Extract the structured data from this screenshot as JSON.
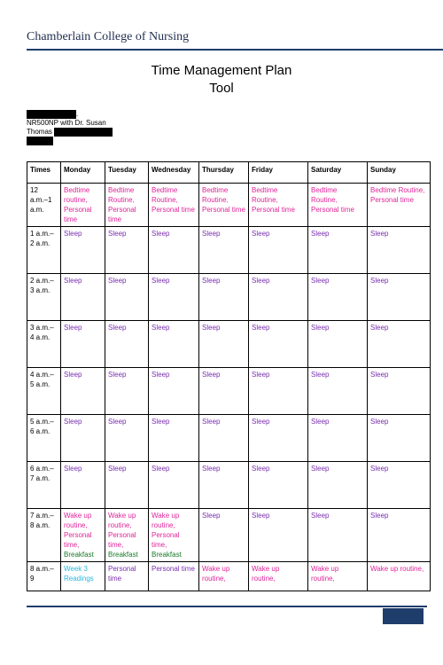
{
  "header": {
    "brand": "Chamberlain College of Nursing"
  },
  "title": {
    "line1": "Time Management Plan",
    "line2": "Tool"
  },
  "meta": {
    "course": "NR500NP with Dr. Susan",
    "instructor_last": "Thomas"
  },
  "table": {
    "headers": [
      "Times",
      "Monday",
      "Tuesday",
      "Wednesday",
      "Thursday",
      "Friday",
      "Saturday",
      "Sunday"
    ],
    "rows": [
      {
        "time": "12 a.m.–1 a.m.",
        "cells": [
          [
            {
              "t": "Bedtime routine, Personal time",
              "c": "magenta"
            }
          ],
          [
            {
              "t": "Bedtime Routine, Personal time",
              "c": "magenta"
            }
          ],
          [
            {
              "t": "Bedtime Routine, Personal time",
              "c": "magenta"
            }
          ],
          [
            {
              "t": "Bedtime Routine, Personal time",
              "c": "magenta"
            }
          ],
          [
            {
              "t": "Bedtime Routine, Personal time",
              "c": "magenta"
            }
          ],
          [
            {
              "t": "Bedtime Routine, Personal time",
              "c": "magenta"
            }
          ],
          [
            {
              "t": "Bedtime Routine, Personal time",
              "c": "magenta"
            }
          ]
        ]
      },
      {
        "time": "1 a.m.–2 a.m.",
        "cells": [
          [
            {
              "t": "Sleep",
              "c": "purple"
            }
          ],
          [
            {
              "t": "Sleep",
              "c": "purple"
            }
          ],
          [
            {
              "t": "Sleep",
              "c": "purple"
            }
          ],
          [
            {
              "t": "Sleep",
              "c": "purple"
            }
          ],
          [
            {
              "t": "Sleep",
              "c": "purple"
            }
          ],
          [
            {
              "t": "Sleep",
              "c": "purple"
            }
          ],
          [
            {
              "t": "Sleep",
              "c": "purple"
            }
          ]
        ]
      },
      {
        "time": "2 a.m.–3 a.m.",
        "cells": [
          [
            {
              "t": "Sleep",
              "c": "purple"
            }
          ],
          [
            {
              "t": "Sleep",
              "c": "purple"
            }
          ],
          [
            {
              "t": "Sleep",
              "c": "purple"
            }
          ],
          [
            {
              "t": "Sleep",
              "c": "purple"
            }
          ],
          [
            {
              "t": "Sleep",
              "c": "purple"
            }
          ],
          [
            {
              "t": "Sleep",
              "c": "purple"
            }
          ],
          [
            {
              "t": "Sleep",
              "c": "purple"
            }
          ]
        ]
      },
      {
        "time": "3 a.m.–4 a.m.",
        "cells": [
          [
            {
              "t": "Sleep",
              "c": "purple"
            }
          ],
          [
            {
              "t": "Sleep",
              "c": "purple"
            }
          ],
          [
            {
              "t": "Sleep",
              "c": "purple"
            }
          ],
          [
            {
              "t": "Sleep",
              "c": "purple"
            }
          ],
          [
            {
              "t": "Sleep",
              "c": "purple"
            }
          ],
          [
            {
              "t": "Sleep",
              "c": "purple"
            }
          ],
          [
            {
              "t": "Sleep",
              "c": "purple"
            }
          ]
        ]
      },
      {
        "time": "4 a.m.–5 a.m.",
        "cells": [
          [
            {
              "t": "Sleep",
              "c": "purple"
            }
          ],
          [
            {
              "t": "Sleep",
              "c": "purple"
            }
          ],
          [
            {
              "t": "Sleep",
              "c": "purple"
            }
          ],
          [
            {
              "t": "Sleep",
              "c": "purple"
            }
          ],
          [
            {
              "t": "Sleep",
              "c": "purple"
            }
          ],
          [
            {
              "t": "Sleep",
              "c": "purple"
            }
          ],
          [
            {
              "t": "Sleep",
              "c": "purple"
            }
          ]
        ]
      },
      {
        "time": "5 a.m.–6 a.m.",
        "cells": [
          [
            {
              "t": "Sleep",
              "c": "purple"
            }
          ],
          [
            {
              "t": "Sleep",
              "c": "purple"
            }
          ],
          [
            {
              "t": "Sleep",
              "c": "purple"
            }
          ],
          [
            {
              "t": "Sleep",
              "c": "purple"
            }
          ],
          [
            {
              "t": "Sleep",
              "c": "purple"
            }
          ],
          [
            {
              "t": "Sleep",
              "c": "purple"
            }
          ],
          [
            {
              "t": "Sleep",
              "c": "purple"
            }
          ]
        ]
      },
      {
        "time": "6 a.m.–7 a.m.",
        "cells": [
          [
            {
              "t": "Sleep",
              "c": "purple"
            }
          ],
          [
            {
              "t": "Sleep",
              "c": "purple"
            }
          ],
          [
            {
              "t": "Sleep",
              "c": "purple"
            }
          ],
          [
            {
              "t": "Sleep",
              "c": "purple"
            }
          ],
          [
            {
              "t": "Sleep",
              "c": "purple"
            }
          ],
          [
            {
              "t": "Sleep",
              "c": "purple"
            }
          ],
          [
            {
              "t": "Sleep",
              "c": "purple"
            }
          ]
        ]
      },
      {
        "time": "7 a.m.–8 a.m.",
        "cells": [
          [
            {
              "t": "Wake up routine, Personal time,",
              "c": "magenta"
            },
            {
              "t": "Breakfast",
              "c": "green"
            }
          ],
          [
            {
              "t": "Wake up routine, Personal time,",
              "c": "magenta"
            },
            {
              "t": "Breakfast",
              "c": "green"
            }
          ],
          [
            {
              "t": "Wake up routine, Personal time,",
              "c": "magenta"
            },
            {
              "t": "Breakfast",
              "c": "green"
            }
          ],
          [
            {
              "t": "Sleep",
              "c": "purple"
            }
          ],
          [
            {
              "t": "Sleep",
              "c": "purple"
            }
          ],
          [
            {
              "t": "Sleep",
              "c": "purple"
            }
          ],
          [
            {
              "t": "Sleep",
              "c": "purple"
            }
          ]
        ]
      },
      {
        "time": "8 a.m.–9",
        "cells": [
          [
            {
              "t": "Week 3 Readings",
              "c": "cyan"
            }
          ],
          [
            {
              "t": "Personal time",
              "c": "purple"
            }
          ],
          [
            {
              "t": "Personal time",
              "c": "purple"
            }
          ],
          [
            {
              "t": "Wake up routine,",
              "c": "magenta"
            }
          ],
          [
            {
              "t": "Wake up routine,",
              "c": "magenta"
            }
          ],
          [
            {
              "t": "Wake up routine,",
              "c": "magenta"
            }
          ],
          [
            {
              "t": "Wake up routine,",
              "c": "magenta"
            }
          ]
        ]
      }
    ]
  }
}
